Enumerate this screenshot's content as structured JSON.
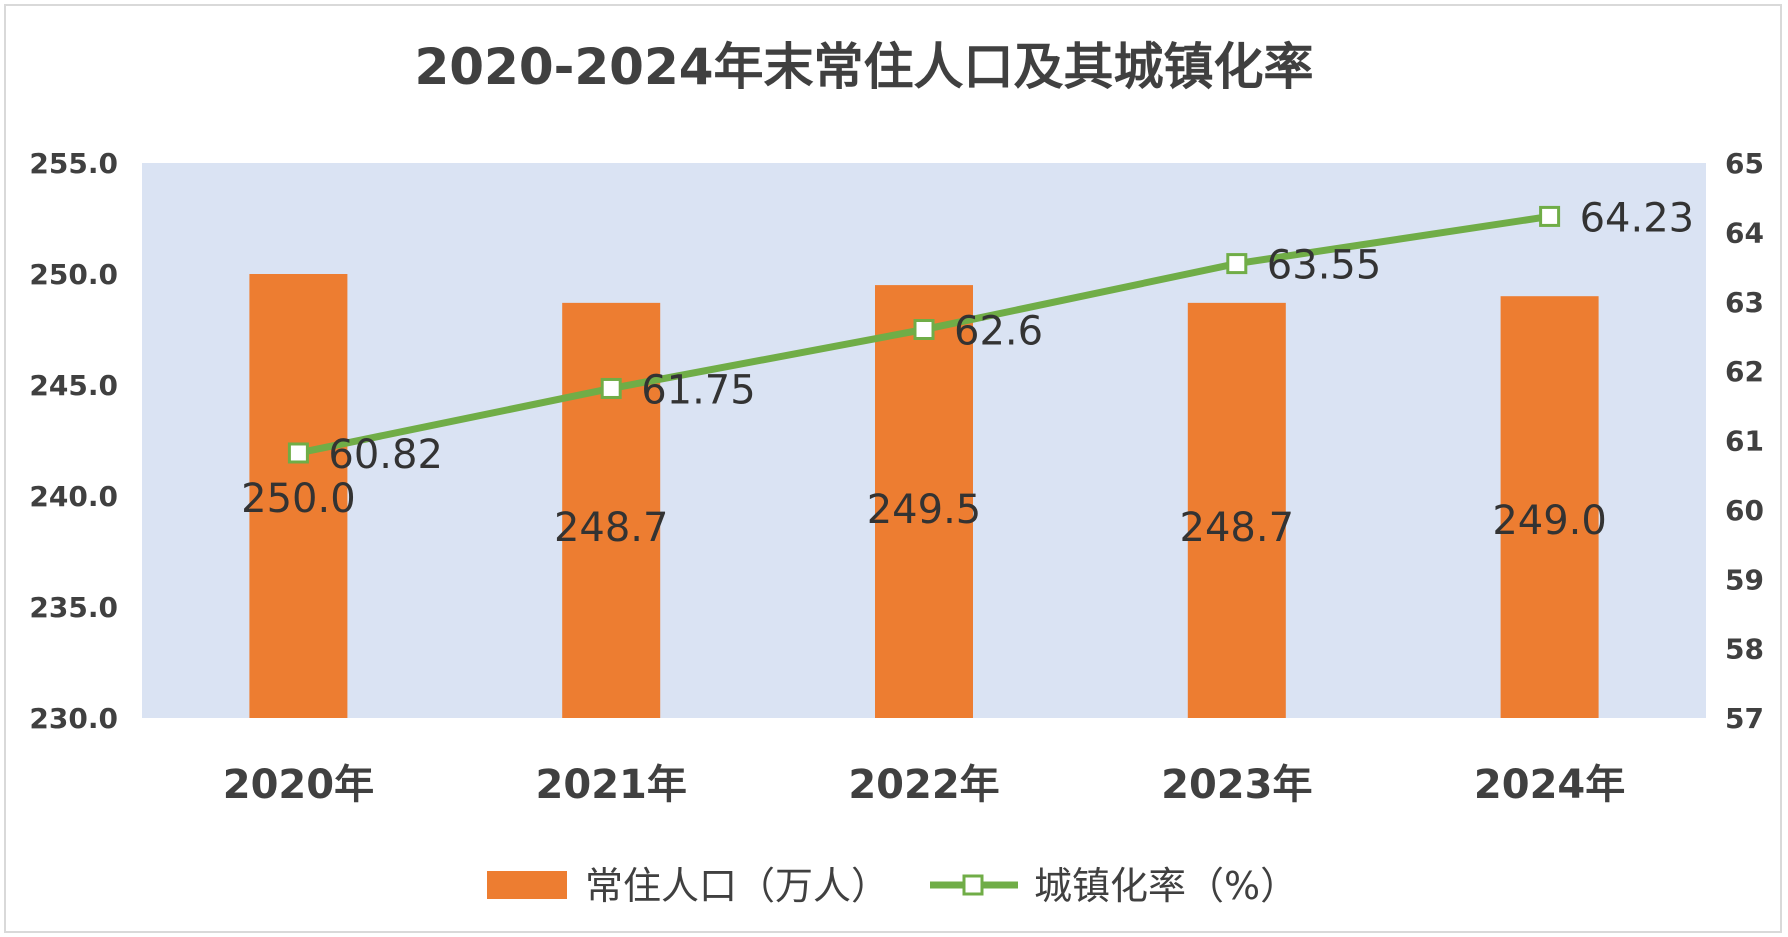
{
  "chart_data": {
    "type": "bar",
    "title": "2020-2024年末常住人口及其城镇化率",
    "categories": [
      "2020年",
      "2021年",
      "2022年",
      "2023年",
      "2024年"
    ],
    "y_left": {
      "ylim": [
        230.0,
        255.0
      ],
      "ticks": [
        "230.0",
        "235.0",
        "240.0",
        "245.0",
        "250.0",
        "255.0"
      ]
    },
    "y_right": {
      "ylim": [
        57,
        65
      ],
      "ticks": [
        "57",
        "58",
        "59",
        "60",
        "61",
        "62",
        "63",
        "64",
        "65"
      ]
    },
    "series": [
      {
        "name": "常住人口（万人）",
        "type": "bar",
        "axis": "left",
        "values": [
          250.0,
          248.7,
          249.5,
          248.7,
          249.0
        ],
        "labels": [
          "250.0",
          "248.7",
          "249.5",
          "248.7",
          "249.0"
        ],
        "color": "#ed7d31"
      },
      {
        "name": "城镇化率（%）",
        "type": "line",
        "axis": "right",
        "values": [
          60.82,
          61.75,
          62.6,
          63.55,
          64.23
        ],
        "labels": [
          "60.82",
          "61.75",
          "62.6",
          "63.55",
          "64.23"
        ],
        "color": "#70ad47"
      }
    ],
    "plot_background": "#dae3f3",
    "grid": false,
    "legend": "bottom"
  }
}
